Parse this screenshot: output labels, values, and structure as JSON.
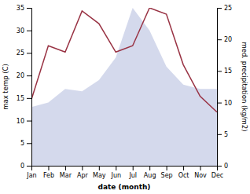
{
  "chart_data": {
    "type": "line",
    "xlabel": "date (month)",
    "ylabel": "max temp (C)",
    "y2label": "med. precipitation (kg/m2)",
    "categories": [
      "Jan",
      "Feb",
      "Mar",
      "Apr",
      "May",
      "Jun",
      "Jul",
      "Aug",
      "Sep",
      "Oct",
      "Nov",
      "Dec"
    ],
    "series": [
      {
        "type": "area",
        "color": "#b8c0e0",
        "values": [
          13,
          14,
          17,
          16.5,
          19,
          24,
          35,
          30,
          22,
          18,
          17,
          17
        ]
      },
      {
        "type": "line",
        "color": "#993344",
        "axis": "y2",
        "values": [
          10.5,
          19,
          18,
          24.5,
          22.5,
          18,
          19,
          25,
          24,
          16,
          11,
          8.5
        ]
      }
    ],
    "ylim": [
      0,
      35
    ],
    "yticks": [
      0,
      5,
      10,
      15,
      20,
      25,
      30,
      35
    ],
    "y2lim": [
      0,
      25
    ],
    "y2ticks": [
      0,
      5,
      10,
      15,
      20,
      25
    ],
    "grid": false
  }
}
